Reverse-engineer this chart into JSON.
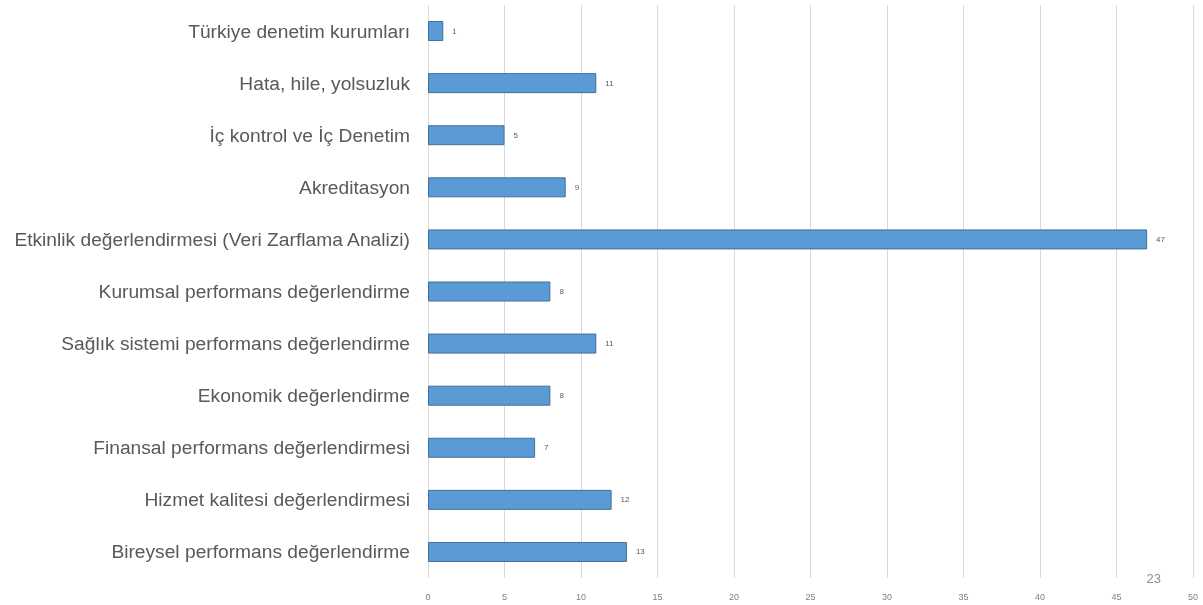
{
  "chart_data": {
    "type": "bar",
    "orientation": "horizontal",
    "categories": [
      "Türkiye denetim kurumları",
      "Hata, hile, yolsuzluk",
      "İç kontrol ve İç Denetim",
      "Akreditasyon",
      "Etkinlik değerlendirmesi (Veri Zarflama Analizi)",
      "Kurumsal performans değerlendirme",
      "Sağlık sistemi performans değerlendirme",
      "Ekonomik değerlendirme",
      "Finansal performans değerlendirmesi",
      "Hizmet kalitesi değerlendirmesi",
      "Bireysel performans değerlendirme"
    ],
    "values": [
      1,
      11,
      5,
      9,
      47,
      8,
      11,
      8,
      7,
      12,
      13
    ],
    "color": "#5b9bd5",
    "xlim": [
      0,
      50
    ],
    "xticks": [
      0,
      5,
      10,
      15,
      20,
      25,
      30,
      35,
      40,
      45,
      50
    ],
    "grid": "x",
    "data_labels": true,
    "annotations": [
      "23"
    ]
  }
}
